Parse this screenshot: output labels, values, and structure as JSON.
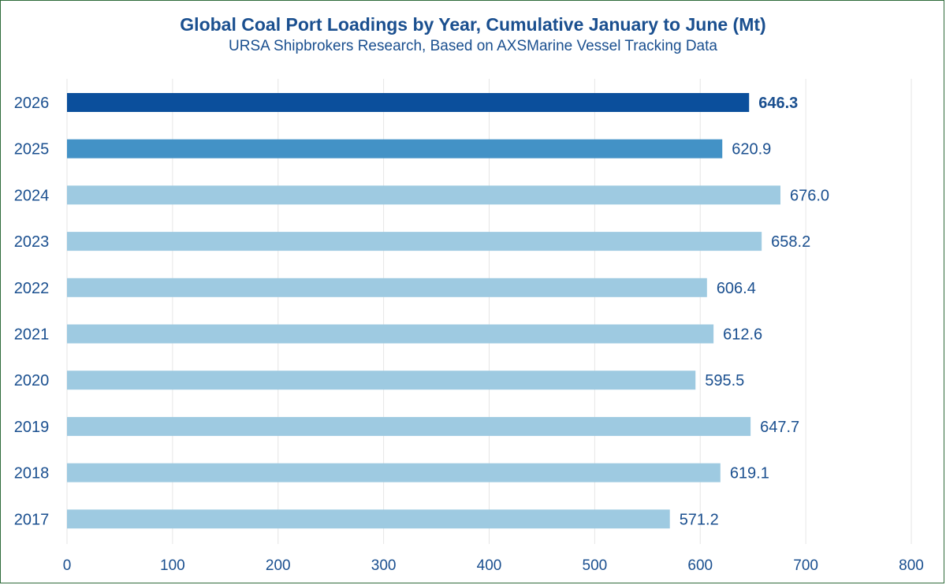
{
  "chart_data": {
    "type": "bar",
    "orientation": "horizontal",
    "title": "Global Coal Port Loadings by Year, Cumulative January to June (Mt)",
    "subtitle": "URSA Shipbrokers Research, Based on AXSMarine Vessel Tracking Data",
    "xlabel": "",
    "ylabel": "",
    "categories": [
      "2026",
      "2025",
      "2024",
      "2023",
      "2022",
      "2021",
      "2020",
      "2019",
      "2018",
      "2017"
    ],
    "values": [
      646.3,
      620.9,
      676.0,
      658.2,
      606.4,
      612.6,
      595.5,
      647.7,
      619.1,
      571.2
    ],
    "value_labels": [
      "646.3",
      "620.9",
      "676.0",
      "658.2",
      "606.4",
      "612.6",
      "595.5",
      "647.7",
      "619.1",
      "571.2"
    ],
    "bar_colors": [
      "#0b4f9c",
      "#4392c6",
      "#9ecae1",
      "#9ecae1",
      "#9ecae1",
      "#9ecae1",
      "#9ecae1",
      "#9ecae1",
      "#9ecae1",
      "#9ecae1"
    ],
    "highlight_bold": [
      true,
      false,
      false,
      false,
      false,
      false,
      false,
      false,
      false,
      false
    ],
    "xlim": [
      0,
      800
    ],
    "xticks": [
      0,
      100,
      200,
      300,
      400,
      500,
      600,
      700,
      800
    ],
    "grid": true,
    "legend": "none"
  },
  "colors": {
    "text": "#1a4f8f",
    "grid": "#e6e6e6",
    "border": "#2e6b3a"
  }
}
